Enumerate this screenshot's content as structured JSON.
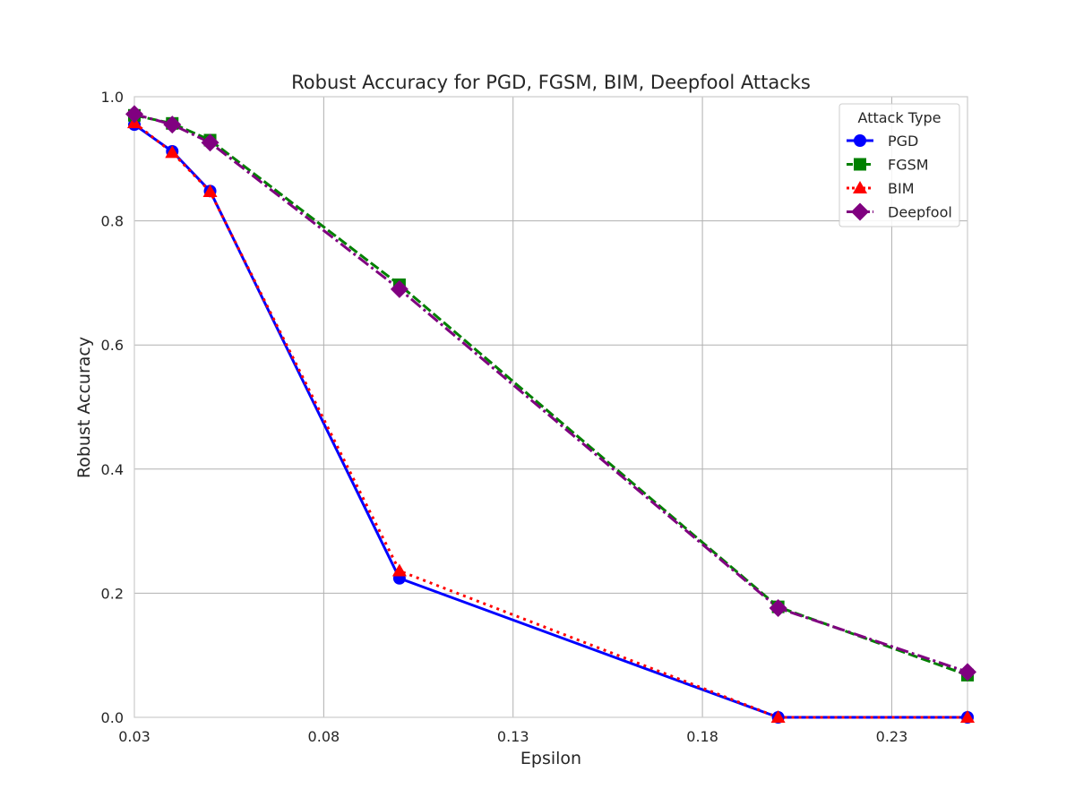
{
  "chart_data": {
    "type": "line",
    "title": "Robust Accuracy for PGD, FGSM, BIM, Deepfool Attacks",
    "xlabel": "Epsilon",
    "ylabel": "Robust Accuracy",
    "xlim": [
      0.03,
      0.25
    ],
    "ylim": [
      0.0,
      1.0
    ],
    "x_ticks": [
      "0.03",
      "0.08",
      "0.13",
      "0.18",
      "0.23"
    ],
    "x_tick_values": [
      0.03,
      0.08,
      0.13,
      0.18,
      0.23
    ],
    "y_ticks": [
      "0.0",
      "0.2",
      "0.4",
      "0.6",
      "0.8",
      "1.0"
    ],
    "y_tick_values": [
      0.0,
      0.2,
      0.4,
      0.6,
      0.8,
      1.0
    ],
    "grid": true,
    "legend": {
      "title": "Attack Type",
      "placement": "top-right"
    },
    "x": [
      0.03,
      0.04,
      0.05,
      0.1,
      0.2,
      0.25
    ],
    "series": [
      {
        "name": "PGD",
        "color": "#0000ff",
        "marker": "circle",
        "dash": "solid",
        "values": [
          0.955,
          0.912,
          0.848,
          0.224,
          0.0,
          0.0
        ]
      },
      {
        "name": "FGSM",
        "color": "#008000",
        "marker": "square",
        "dash": "dashed",
        "values": [
          0.97,
          0.957,
          0.93,
          0.697,
          0.178,
          0.068
        ]
      },
      {
        "name": "BIM",
        "color": "#ff0000",
        "marker": "triangle",
        "dash": "dotted",
        "values": [
          0.958,
          0.91,
          0.847,
          0.236,
          0.0,
          0.0
        ]
      },
      {
        "name": "Deepfool",
        "color": "#800080",
        "marker": "diamond",
        "dash": "dashdot",
        "values": [
          0.972,
          0.955,
          0.926,
          0.69,
          0.176,
          0.073
        ]
      }
    ]
  }
}
